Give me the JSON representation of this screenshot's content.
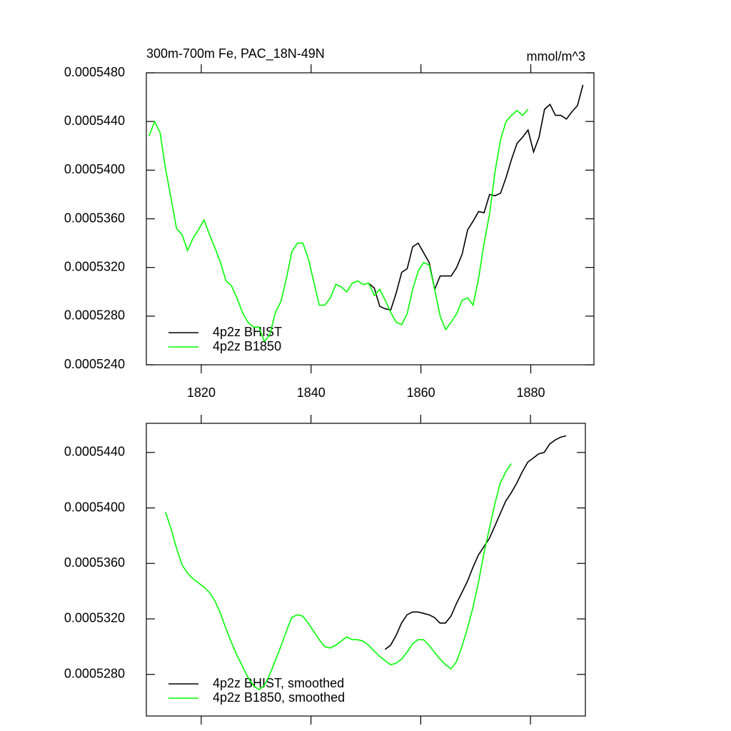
{
  "chart_data": [
    {
      "type": "line",
      "title": "300m-700m Fe, PAC_18N-49N",
      "right_title": "mmol/m^3",
      "x": [
        1810.5,
        1811.5,
        1812.5,
        1813.5,
        1814.5,
        1815.5,
        1816.5,
        1817.5,
        1818.5,
        1819.5,
        1820.5,
        1821.5,
        1822.5,
        1823.5,
        1824.5,
        1825.5,
        1826.5,
        1827.5,
        1828.5,
        1829.5,
        1830.5,
        1831.5,
        1832.5,
        1833.5,
        1834.5,
        1835.5,
        1836.5,
        1837.5,
        1838.5,
        1839.5,
        1840.5,
        1841.5,
        1842.5,
        1843.5,
        1844.5,
        1845.5,
        1846.5,
        1847.5,
        1848.5,
        1849.5,
        1850.5,
        1851.5,
        1852.5,
        1853.5,
        1854.5,
        1855.5,
        1856.5,
        1857.5,
        1858.5,
        1859.5,
        1860.5,
        1861.5,
        1862.5,
        1863.5,
        1864.5,
        1865.5,
        1866.5,
        1867.5,
        1868.5,
        1869.5,
        1870.5,
        1871.5,
        1872.5,
        1873.5,
        1874.5,
        1875.5,
        1876.5,
        1877.5,
        1878.5,
        1879.5,
        1880.5,
        1881.5,
        1882.5,
        1883.5,
        1884.5,
        1885.5,
        1886.5,
        1887.5,
        1888.5,
        1889.5
      ],
      "series": [
        {
          "name": "4p2z BHIST",
          "color": "#000000",
          "values": [
            null,
            null,
            null,
            null,
            null,
            null,
            null,
            null,
            null,
            null,
            null,
            null,
            null,
            null,
            null,
            null,
            null,
            null,
            null,
            null,
            null,
            null,
            null,
            null,
            null,
            null,
            null,
            null,
            null,
            null,
            null,
            null,
            null,
            null,
            null,
            null,
            null,
            null,
            null,
            null,
            0.0005307,
            0.0005303,
            0.0005288,
            0.0005286,
            0.0005285,
            0.0005299,
            0.0005316,
            0.0005319,
            0.0005337,
            0.000534,
            0.0005332,
            0.0005324,
            0.0005302,
            0.0005313,
            0.0005313,
            0.0005313,
            0.000532,
            0.0005331,
            0.0005351,
            0.0005358,
            0.0005366,
            0.0005365,
            0.000538,
            0.0005379,
            0.0005381,
            0.0005394,
            0.0005409,
            0.0005422,
            0.0005427,
            0.0005433,
            0.0005415,
            0.0005427,
            0.000545,
            0.0005454,
            0.0005445,
            0.0005445,
            0.0005442,
            0.0005448,
            0.0005453,
            0.000547
          ]
        },
        {
          "name": "4p2z B1850",
          "color": "#00ff00",
          "values": [
            0.0005428,
            0.000544,
            0.0005431,
            0.0005401,
            0.0005377,
            0.0005352,
            0.0005347,
            0.0005334,
            0.0005344,
            0.0005351,
            0.0005359,
            0.0005347,
            0.0005336,
            0.0005324,
            0.0005309,
            0.0005305,
            0.0005295,
            0.0005283,
            0.0005275,
            0.0005271,
            0.0005271,
            0.0005259,
            0.0005265,
            0.0005283,
            0.0005292,
            0.0005311,
            0.0005333,
            0.000534,
            0.000534,
            0.0005327,
            0.0005308,
            0.0005289,
            0.0005289,
            0.0005295,
            0.0005306,
            0.0005304,
            0.00053,
            0.0005307,
            0.0005309,
            0.0005306,
            0.0005307,
            0.0005297,
            0.0005302,
            0.0005293,
            0.0005283,
            0.0005275,
            0.0005273,
            0.0005282,
            0.0005302,
            0.0005317,
            0.0005324,
            0.0005322,
            0.0005302,
            0.000528,
            0.0005269,
            0.0005275,
            0.0005282,
            0.0005293,
            0.0005295,
            0.0005289,
            0.0005311,
            0.000534,
            0.0005364,
            0.0005399,
            0.0005425,
            0.000544,
            0.0005445,
            0.0005449,
            0.0005445,
            0.000545,
            null,
            null,
            null,
            null,
            null,
            null,
            null,
            null,
            null,
            null
          ]
        }
      ],
      "xlim": [
        1810,
        1891.5
      ],
      "xticks": [
        1820,
        1840,
        1860,
        1880
      ],
      "ylim": [
        0.000524,
        0.000548
      ],
      "yticks": [
        {
          "value": 0.000524,
          "label": "0.0005240"
        },
        {
          "value": 0.000528,
          "label": "0.0005280"
        },
        {
          "value": 0.000532,
          "label": "0.0005320"
        },
        {
          "value": 0.000536,
          "label": "0.0005360"
        },
        {
          "value": 0.00054,
          "label": "0.0005400"
        },
        {
          "value": 0.000544,
          "label": "0.0005440"
        },
        {
          "value": 0.000548,
          "label": "0.0005480"
        }
      ],
      "legend": "bottom-left",
      "show_xtick_labels": true
    },
    {
      "type": "line",
      "x": [
        1810.5,
        1811.5,
        1812.5,
        1813.5,
        1814.5,
        1815.5,
        1816.5,
        1817.5,
        1818.5,
        1819.5,
        1820.5,
        1821.5,
        1822.5,
        1823.5,
        1824.5,
        1825.5,
        1826.5,
        1827.5,
        1828.5,
        1829.5,
        1830.5,
        1831.5,
        1832.5,
        1833.5,
        1834.5,
        1835.5,
        1836.5,
        1837.5,
        1838.5,
        1839.5,
        1840.5,
        1841.5,
        1842.5,
        1843.5,
        1844.5,
        1845.5,
        1846.5,
        1847.5,
        1848.5,
        1849.5,
        1850.5,
        1851.5,
        1852.5,
        1853.5,
        1854.5,
        1855.5,
        1856.5,
        1857.5,
        1858.5,
        1859.5,
        1860.5,
        1861.5,
        1862.5,
        1863.5,
        1864.5,
        1865.5,
        1866.5,
        1867.5,
        1868.5,
        1869.5,
        1870.5,
        1871.5,
        1872.5,
        1873.5,
        1874.5,
        1875.5,
        1876.5,
        1877.5,
        1878.5,
        1879.5,
        1880.5,
        1881.5,
        1882.5,
        1883.5,
        1884.5,
        1885.5,
        1886.5,
        1887.5,
        1888.5,
        1889.5
      ],
      "series": [
        {
          "name": "4p2z BHIST, smoothed",
          "color": "#000000",
          "values": [
            null,
            null,
            null,
            null,
            null,
            null,
            null,
            null,
            null,
            null,
            null,
            null,
            null,
            null,
            null,
            null,
            null,
            null,
            null,
            null,
            null,
            null,
            null,
            null,
            null,
            null,
            null,
            null,
            null,
            null,
            null,
            null,
            null,
            null,
            null,
            null,
            null,
            null,
            null,
            null,
            null,
            null,
            null,
            0.0005298,
            0.0005301,
            0.0005308,
            0.0005317,
            0.0005323,
            0.0005325,
            0.0005325,
            0.0005324,
            0.0005323,
            0.0005321,
            0.0005317,
            0.0005317,
            0.0005322,
            0.0005331,
            0.0005339,
            0.0005347,
            0.0005357,
            0.0005366,
            0.0005372,
            0.0005378,
            0.0005387,
            0.0005396,
            0.0005405,
            0.0005411,
            0.0005418,
            0.0005426,
            0.0005433,
            0.0005436,
            0.0005439,
            0.000544,
            0.0005446,
            0.0005449,
            0.0005451,
            0.0005452,
            null,
            null,
            null
          ]
        },
        {
          "name": "4p2z B1850, smoothed",
          "color": "#00ff00",
          "values": [
            null,
            null,
            null,
            0.0005397,
            0.0005385,
            0.0005371,
            0.0005359,
            0.0005353,
            0.0005349,
            0.0005346,
            0.0005343,
            0.0005339,
            0.0005333,
            0.0005324,
            0.0005313,
            0.0005303,
            0.0005294,
            0.0005286,
            0.0005278,
            0.0005272,
            0.0005269,
            0.0005272,
            0.000528,
            0.000529,
            0.00053,
            0.0005311,
            0.0005321,
            0.0005323,
            0.0005322,
            0.0005317,
            0.0005311,
            0.0005305,
            0.00053,
            0.0005299,
            0.0005301,
            0.0005304,
            0.0005307,
            0.0005305,
            0.0005305,
            0.0005304,
            0.0005301,
            0.0005297,
            0.0005293,
            0.000529,
            0.0005287,
            0.0005288,
            0.0005291,
            0.0005296,
            0.0005302,
            0.0005305,
            0.0005305,
            0.0005301,
            0.0005296,
            0.0005291,
            0.0005287,
            0.0005284,
            0.0005289,
            0.00053,
            0.0005313,
            0.0005328,
            0.0005346,
            0.0005367,
            0.0005385,
            0.0005403,
            0.0005418,
            0.0005426,
            0.0005432,
            null,
            null,
            null,
            null,
            null,
            null,
            null,
            null,
            null,
            null,
            null,
            null,
            null
          ]
        }
      ],
      "xlim": [
        1810,
        1890
      ],
      "xticks": [
        1820,
        1840,
        1860,
        1880
      ],
      "ylim": [
        0.000525,
        0.0005461
      ],
      "yticks": [
        {
          "value": 0.000528,
          "label": "0.0005280"
        },
        {
          "value": 0.000532,
          "label": "0.0005320"
        },
        {
          "value": 0.000536,
          "label": "0.0005360"
        },
        {
          "value": 0.00054,
          "label": "0.0005400"
        },
        {
          "value": 0.000544,
          "label": "0.0005440"
        }
      ],
      "legend": "bottom-left",
      "show_xtick_labels": false
    }
  ]
}
